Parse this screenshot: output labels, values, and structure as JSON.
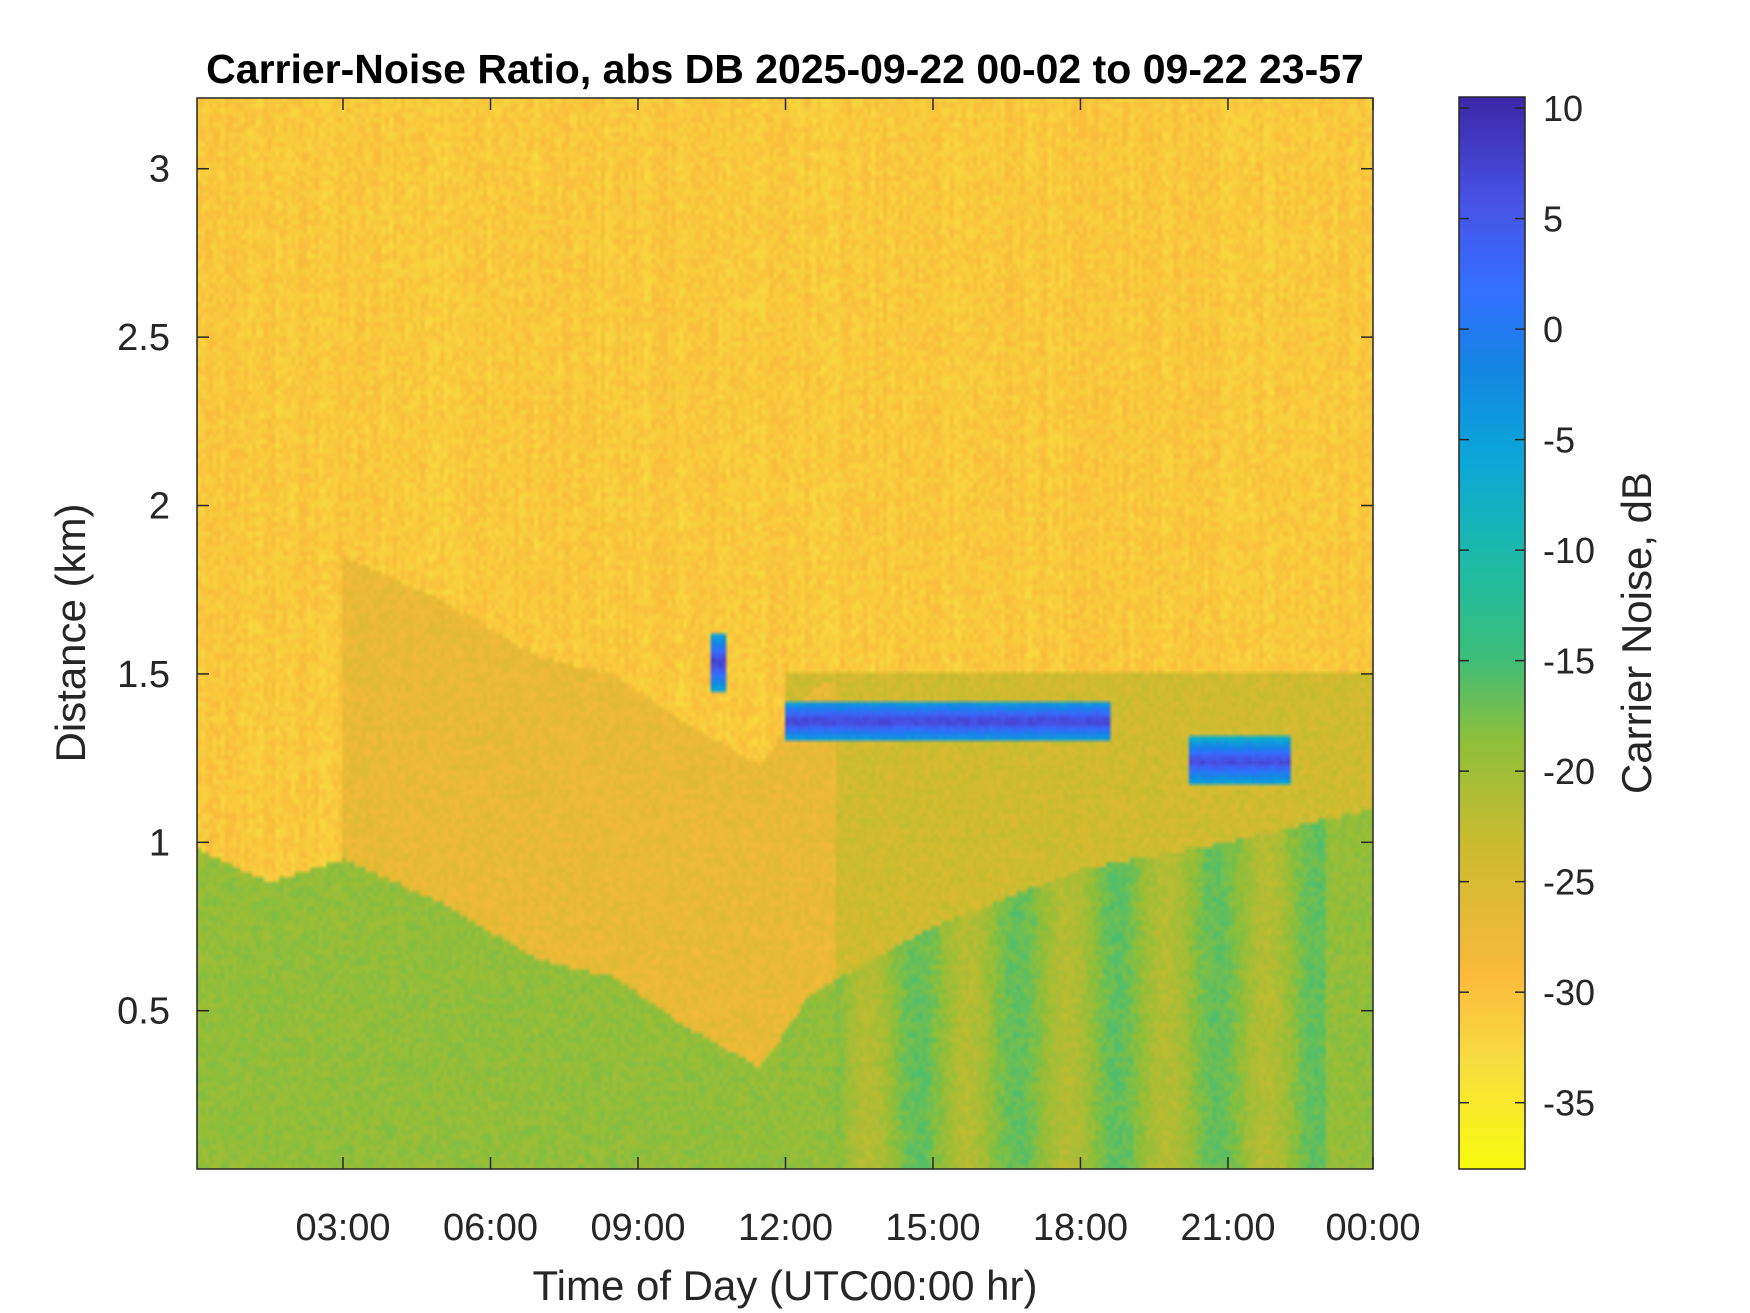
{
  "chart_data": {
    "type": "heatmap",
    "title": "Carrier-Noise Ratio, abs DB 2025-09-22 00-02 to 09-22 23-57",
    "xlabel": "Time of Day (UTC00:00 hr)",
    "ylabel": "Distance (km)",
    "colorbar_label": "Carrier Noise, dB",
    "colormap": "parula",
    "x_range_hours": [
      0.03,
      23.95
    ],
    "x_ticks": [
      {
        "hour": 3,
        "label": "03:00"
      },
      {
        "hour": 6,
        "label": "06:00"
      },
      {
        "hour": 9,
        "label": "09:00"
      },
      {
        "hour": 12,
        "label": "12:00"
      },
      {
        "hour": 15,
        "label": "15:00"
      },
      {
        "hour": 18,
        "label": "18:00"
      },
      {
        "hour": 21,
        "label": "21:00"
      },
      {
        "hour": 24,
        "label": "00:00"
      }
    ],
    "y_range_km": [
      0.03,
      3.21
    ],
    "y_ticks": [
      {
        "km": 0.5,
        "label": "0.5"
      },
      {
        "km": 1,
        "label": "1"
      },
      {
        "km": 1.5,
        "label": "1.5"
      },
      {
        "km": 2,
        "label": "2"
      },
      {
        "km": 2.5,
        "label": "2.5"
      },
      {
        "km": 3,
        "label": "3"
      }
    ],
    "clim": [
      -38,
      10.5
    ],
    "colorbar_ticks": [
      {
        "value": 10,
        "label": "10"
      },
      {
        "value": 5,
        "label": "5"
      },
      {
        "value": 0,
        "label": "0"
      },
      {
        "value": -5,
        "label": "-5"
      },
      {
        "value": -10,
        "label": "-10"
      },
      {
        "value": -15,
        "label": "-15"
      },
      {
        "value": -20,
        "label": "-20"
      },
      {
        "value": -25,
        "label": "-25"
      },
      {
        "value": -30,
        "label": "-30"
      },
      {
        "value": -35,
        "label": "-35"
      }
    ],
    "approximate_field": {
      "background_value": -31,
      "near_surface_value": -19,
      "layer_top_profile_km": [
        [
          0.03,
          0.98
        ],
        [
          1.5,
          0.88
        ],
        [
          3,
          0.95
        ],
        [
          5,
          0.82
        ],
        [
          7,
          0.65
        ],
        [
          8.5,
          0.6
        ],
        [
          10,
          0.45
        ],
        [
          11.5,
          0.33
        ],
        [
          12.5,
          0.55
        ],
        [
          15,
          0.75
        ],
        [
          18,
          0.92
        ],
        [
          21,
          1.0
        ],
        [
          23.95,
          1.1
        ]
      ],
      "cloud_layers": [
        {
          "hour_range": [
            10.5,
            10.8
          ],
          "km_range": [
            1.45,
            1.62
          ],
          "value": 8
        },
        {
          "hour_range": [
            12.0,
            18.6
          ],
          "km_range": [
            1.3,
            1.42
          ],
          "value": 8
        },
        {
          "hour_range": [
            20.2,
            22.3
          ],
          "km_range": [
            1.17,
            1.31
          ],
          "value": 7
        }
      ]
    }
  }
}
